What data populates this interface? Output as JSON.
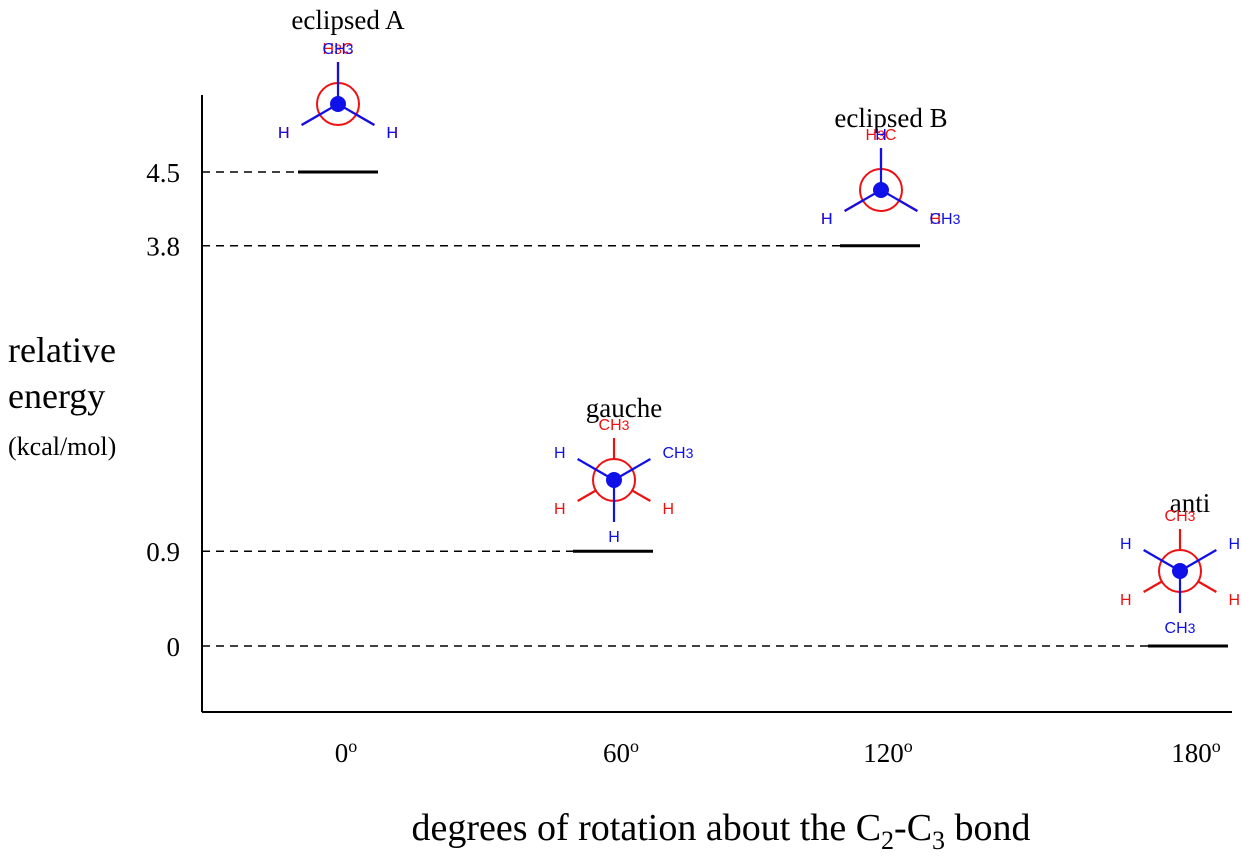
{
  "chart_data": {
    "type": "energy-diagram",
    "ylabel": [
      "relative",
      "energy",
      "(kcal/mol)"
    ],
    "xlabel": {
      "main": "degrees of rotation about the C",
      "sub1": "2",
      "dash": "-C",
      "sub2": "3",
      "tail": " bond"
    },
    "x_ticks": [
      "0",
      "60",
      "120",
      "180"
    ],
    "x_tick_suffix": "o",
    "y_ticks": [
      "4.5",
      "3.8",
      "0.9",
      "0"
    ],
    "ylim": [
      0,
      4.5
    ],
    "x": [
      0,
      60,
      120,
      180
    ],
    "values": [
      4.5,
      0.9,
      3.8,
      0
    ],
    "grid": false,
    "conformations": [
      {
        "name": "eclipsed A",
        "angle": 0,
        "energy": 4.5,
        "front": [
          {
            "deg": 0,
            "label": "CH3"
          },
          {
            "deg": 240,
            "label": "H"
          },
          {
            "deg": 120,
            "label": "H"
          }
        ],
        "back": [
          {
            "deg": 0,
            "label": "H3C"
          },
          {
            "deg": 240,
            "label": "H"
          },
          {
            "deg": 120,
            "label": "H"
          }
        ]
      },
      {
        "name": "gauche",
        "angle": 60,
        "energy": 0.9,
        "front": [
          {
            "deg": 60,
            "label": "CH3"
          },
          {
            "deg": 300,
            "label": "H"
          },
          {
            "deg": 180,
            "label": "H"
          }
        ],
        "back": [
          {
            "deg": 0,
            "label": "CH3"
          },
          {
            "deg": 240,
            "label": "H"
          },
          {
            "deg": 120,
            "label": "H"
          }
        ]
      },
      {
        "name": "eclipsed B",
        "angle": 120,
        "energy": 3.8,
        "front": [
          {
            "deg": 0,
            "label": "H"
          },
          {
            "deg": 240,
            "label": "H"
          },
          {
            "deg": 120,
            "label": "CH3"
          }
        ],
        "back": [
          {
            "deg": 0,
            "label": "H3C"
          },
          {
            "deg": 240,
            "label": "H"
          },
          {
            "deg": 120,
            "label": "H"
          }
        ]
      },
      {
        "name": "anti",
        "angle": 180,
        "energy": 0,
        "front": [
          {
            "deg": 180,
            "label": "CH3"
          },
          {
            "deg": 300,
            "label": "H"
          },
          {
            "deg": 60,
            "label": "H"
          }
        ],
        "back": [
          {
            "deg": 0,
            "label": "CH3"
          },
          {
            "deg": 240,
            "label": "H"
          },
          {
            "deg": 120,
            "label": "H"
          }
        ]
      }
    ],
    "colors": {
      "front": "#1010e8",
      "back": "#ee1111",
      "axis": "#000000"
    }
  }
}
